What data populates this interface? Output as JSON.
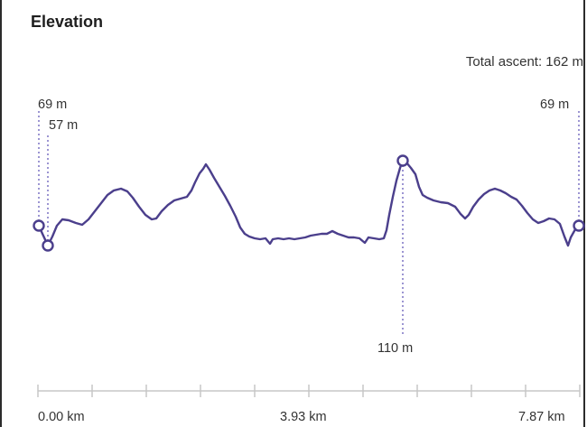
{
  "panel": {
    "title": "Elevation",
    "total_ascent": "Total ascent: 162 m"
  },
  "markers": {
    "start_label": "69 m",
    "min_label": "57 m",
    "max_label": "110 m",
    "end_label": "69 m"
  },
  "axis": {
    "start": "0.00 km",
    "mid": "3.93 km",
    "end": "7.87 km"
  },
  "colors": {
    "line": "#4b3f8c",
    "guide": "#7b72c4",
    "axis": "#c7c7c7"
  }
}
